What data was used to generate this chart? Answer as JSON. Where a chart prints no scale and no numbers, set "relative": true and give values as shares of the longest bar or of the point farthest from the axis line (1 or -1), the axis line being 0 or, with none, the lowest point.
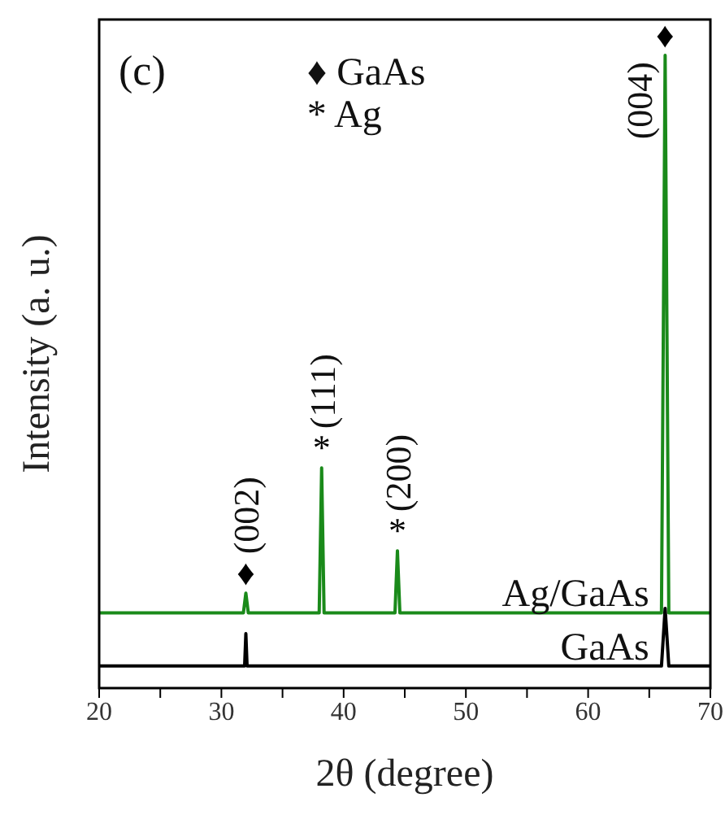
{
  "chart_data": {
    "type": "line",
    "relative": true,
    "xlabel": "2θ (degree)",
    "ylabel": "Intensity (a. u.)",
    "xlim": [
      20,
      70
    ],
    "xticks": [
      20,
      {
        "value": 25,
        "label": null
      },
      30,
      {
        "value": 35,
        "label": null
      },
      40,
      {
        "value": 45,
        "label": null
      },
      50,
      {
        "value": 55,
        "label": null
      },
      60,
      {
        "value": 65,
        "label": null
      },
      70
    ],
    "series": [
      {
        "name": "Ag/GaAs",
        "color": "#1a8a1a",
        "x": [
          20,
          31.8,
          32,
          32.2,
          38.0,
          38.2,
          38.4,
          44.2,
          44.4,
          44.6,
          66.0,
          66.3,
          66.6,
          70
        ],
        "values": [
          0.119,
          0.119,
          0.15,
          0.119,
          0.119,
          0.348,
          0.119,
          0.119,
          0.217,
          0.119,
          0.119,
          1,
          0.119,
          0.119
        ]
      },
      {
        "name": "GaAs",
        "color": "#000000",
        "x": [
          20,
          31.9,
          32,
          32.1,
          66.0,
          66.3,
          66.6,
          70
        ],
        "values": [
          0.035,
          0.035,
          0.086,
          0.035,
          0.035,
          0.126,
          0.035,
          0.035
        ]
      }
    ],
    "annotations": [
      "(c)",
      "♦ GaAs",
      "* Ag",
      {
        "text": "♦ (002)",
        "x": 32,
        "y": 0.15
      },
      {
        "text": "* (111)",
        "x": 38.2,
        "y": 0.348
      },
      {
        "text": "* (200)",
        "x": 44.4,
        "y": 0.217
      },
      {
        "text": "♦ (004)",
        "x": 66.3,
        "y": 1
      }
    ]
  }
}
